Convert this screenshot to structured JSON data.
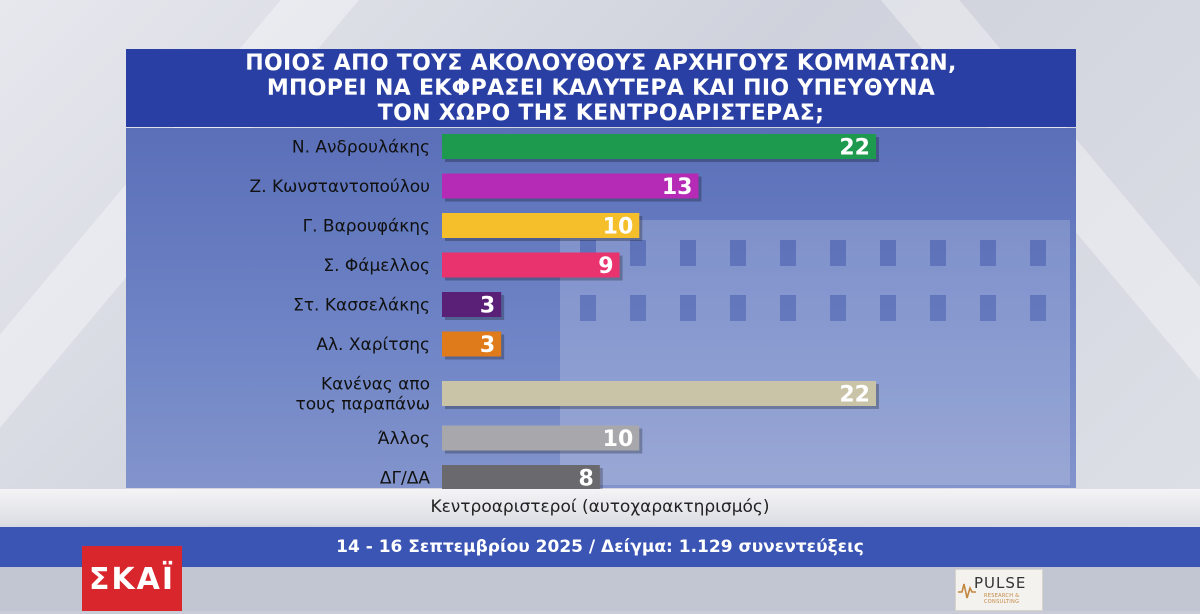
{
  "title": {
    "lines": [
      "ΠΟΙΟΣ ΑΠΟ ΤΟΥΣ ΑΚΟΛΟΥΘΟΥΣ ΑΡΧΗΓΟΥΣ ΚΟΜΜΑΤΩΝ,",
      "ΜΠΟΡΕΙ ΝΑ ΕΚΦΡΑΣΕΙ ΚΑΛΥΤΕΡΑ ΚΑΙ ΠΙΟ ΥΠΕΥΘΥΝΑ",
      "ΤΟΝ ΧΩΡΟ ΤΗΣ ΚΕΝΤΡΟΑΡΙΣΤΕΡΑΣ;"
    ]
  },
  "chart_data": {
    "type": "bar",
    "orientation": "horizontal",
    "categories": [
      [
        "Ν. Ανδρουλάκης"
      ],
      [
        "Ζ. Κωνσταντοπούλου"
      ],
      [
        "Γ. Βαρουφάκης"
      ],
      [
        "Σ. Φάμελλος"
      ],
      [
        "Στ. Κασσελάκης"
      ],
      [
        "Αλ. Χαρίτσης"
      ],
      [
        "Κανένας απο",
        "τους παραπάνω"
      ],
      [
        "Άλλος"
      ],
      [
        "ΔΓ/ΔΑ"
      ]
    ],
    "values": [
      22,
      13,
      10,
      9,
      3,
      3,
      22,
      10,
      8
    ],
    "colors": [
      "#1e9a4e",
      "#b52bb5",
      "#f4bf2a",
      "#e8336f",
      "#5a2078",
      "#e07b1c",
      "#c9c3a8",
      "#a8a8ac",
      "#6a6a6e"
    ],
    "label_colors": [
      "#ffffff",
      "#ffffff",
      "#ffffff",
      "#ffffff",
      "#ffffff",
      "#ffffff",
      "#ffffff",
      "#ffffff",
      "#ffffff"
    ],
    "xlim": [
      0,
      22
    ],
    "title": "",
    "xlabel": "",
    "ylabel": ""
  },
  "subtitle": "Κεντροαριστεροί (αυτοχαρακτηρισμός)",
  "footer": "14 - 16 Σεπτεμβρίου 2025 / Δείγμα: 1.129 συνεντεύξεις",
  "logos": {
    "broadcaster": "ΣΚΑΪ",
    "pollster": "PULSE",
    "pollster_sub": "RESEARCH & CONSULTING"
  }
}
